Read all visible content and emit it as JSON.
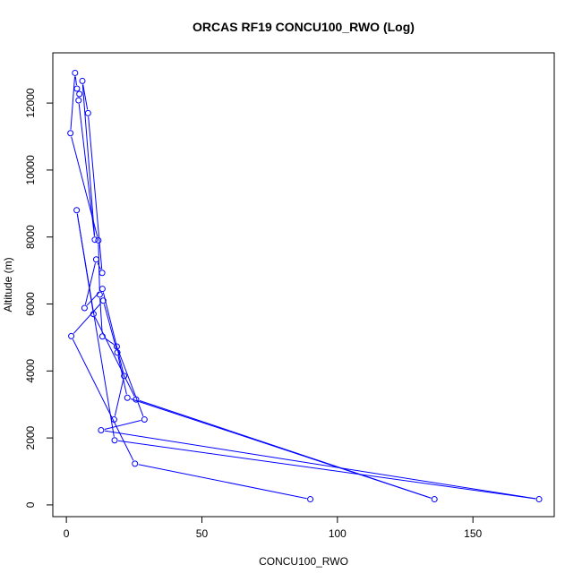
{
  "chart_data": {
    "type": "line",
    "title": "ORCAS RF19 CONCU100_RWO (Log)",
    "xlabel": "CONCU100_RWO",
    "ylabel": "Altitude (m)",
    "xlim": [
      -5,
      180
    ],
    "ylim": [
      -350,
      13500
    ],
    "x_ticks": [
      0,
      50,
      100,
      150
    ],
    "y_ticks": [
      0,
      2000,
      4000,
      6000,
      8000,
      10000,
      12000
    ],
    "marker": "open-circle",
    "grid": false,
    "colors": {
      "series": "#0000ff",
      "axis": "#000000"
    },
    "series": [
      {
        "points": [
          {
            "x": 90.0,
            "y": 170
          },
          {
            "x": 25.3,
            "y": 1230
          },
          {
            "x": 1.8,
            "y": 5040
          },
          {
            "x": 13.6,
            "y": 6100
          },
          {
            "x": 18.8,
            "y": 4550
          },
          {
            "x": 22.5,
            "y": 3200
          },
          {
            "x": 135.8,
            "y": 170
          },
          {
            "x": 25.7,
            "y": 3150
          },
          {
            "x": 10.0,
            "y": 5700
          },
          {
            "x": 3.8,
            "y": 8800
          },
          {
            "x": 17.8,
            "y": 1930
          },
          {
            "x": 174.4,
            "y": 170
          },
          {
            "x": 12.8,
            "y": 2230
          },
          {
            "x": 28.8,
            "y": 2550
          },
          {
            "x": 18.6,
            "y": 4730
          },
          {
            "x": 13.3,
            "y": 5030
          },
          {
            "x": 12.3,
            "y": 6280
          },
          {
            "x": 11.8,
            "y": 7900
          },
          {
            "x": 1.5,
            "y": 11100
          },
          {
            "x": 3.2,
            "y": 12900
          },
          {
            "x": 3.9,
            "y": 12430
          },
          {
            "x": 4.8,
            "y": 12270
          },
          {
            "x": 4.5,
            "y": 12080
          },
          {
            "x": 10.5,
            "y": 7920
          },
          {
            "x": 5.9,
            "y": 12660
          },
          {
            "x": 8.0,
            "y": 11700
          },
          {
            "x": 13.2,
            "y": 6930
          },
          {
            "x": 11.0,
            "y": 7330
          },
          {
            "x": 6.7,
            "y": 5880
          },
          {
            "x": 13.3,
            "y": 6450
          },
          {
            "x": 21.3,
            "y": 3850
          },
          {
            "x": 17.6,
            "y": 2550
          }
        ]
      }
    ]
  }
}
